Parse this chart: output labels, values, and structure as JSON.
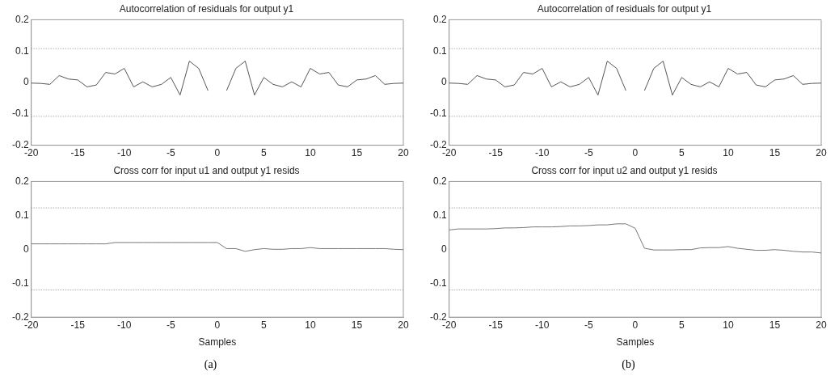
{
  "chart_data": [
    {
      "type": "line",
      "title": "Autocorrelation of residuals for output y1",
      "x": [
        -20,
        -19,
        -18,
        -17,
        -16,
        -15,
        -14,
        -13,
        -12,
        -11,
        -10,
        -9,
        -8,
        -7,
        -6,
        -5,
        -4,
        -3,
        -2,
        -1,
        0,
        1,
        2,
        3,
        4,
        5,
        6,
        7,
        8,
        9,
        10,
        11,
        12,
        13,
        14,
        15,
        16,
        17,
        18,
        19,
        20
      ],
      "series": [
        {
          "color": "#555555",
          "values": [
            -0.002,
            -0.003,
            -0.006,
            0.022,
            0.011,
            0.008,
            -0.014,
            -0.008,
            0.032,
            0.027,
            0.045,
            -0.014,
            0.002,
            -0.014,
            -0.006,
            0.016,
            -0.04,
            0.068,
            0.045,
            -0.026,
            null,
            -0.026,
            0.045,
            0.068,
            -0.04,
            0.016,
            -0.006,
            -0.014,
            0.002,
            -0.014,
            0.045,
            0.027,
            0.032,
            -0.008,
            -0.014,
            0.008,
            0.011,
            0.022,
            -0.006,
            -0.003,
            -0.002
          ]
        }
      ],
      "xlim": [
        -20,
        20
      ],
      "xticks": [
        -20,
        -15,
        -10,
        -5,
        0,
        5,
        10,
        15,
        20
      ],
      "ylim": [
        -0.2,
        0.2
      ],
      "yticks": [
        -0.2,
        -0.1,
        0,
        0.1,
        0.2
      ],
      "grid": false,
      "ref_lines": [
        {
          "axis": "y",
          "value": 0.108,
          "color": "#888888",
          "line_style": "dotted"
        },
        {
          "axis": "y",
          "value": -0.108,
          "color": "#888888",
          "line_style": "dotted"
        }
      ]
    },
    {
      "type": "line",
      "title": "Autocorrelation of residuals for output y1",
      "x": [
        -20,
        -19,
        -18,
        -17,
        -16,
        -15,
        -14,
        -13,
        -12,
        -11,
        -10,
        -9,
        -8,
        -7,
        -6,
        -5,
        -4,
        -3,
        -2,
        -1,
        0,
        1,
        2,
        3,
        4,
        5,
        6,
        7,
        8,
        9,
        10,
        11,
        12,
        13,
        14,
        15,
        16,
        17,
        18,
        19,
        20
      ],
      "series": [
        {
          "color": "#555555",
          "values": [
            -0.002,
            -0.003,
            -0.006,
            0.022,
            0.011,
            0.008,
            -0.014,
            -0.008,
            0.032,
            0.027,
            0.045,
            -0.014,
            0.002,
            -0.014,
            -0.006,
            0.016,
            -0.04,
            0.068,
            0.045,
            -0.026,
            null,
            -0.026,
            0.045,
            0.068,
            -0.04,
            0.016,
            -0.006,
            -0.014,
            0.002,
            -0.014,
            0.045,
            0.027,
            0.032,
            -0.008,
            -0.014,
            0.008,
            0.011,
            0.022,
            -0.006,
            -0.003,
            -0.002
          ]
        }
      ],
      "xlim": [
        -20,
        20
      ],
      "xticks": [
        -20,
        -15,
        -10,
        -5,
        0,
        5,
        10,
        15,
        20
      ],
      "ylim": [
        -0.2,
        0.2
      ],
      "yticks": [
        -0.2,
        -0.1,
        0,
        0.1,
        0.2
      ],
      "grid": false,
      "ref_lines": [
        {
          "axis": "y",
          "value": 0.108,
          "color": "#888888",
          "line_style": "dotted"
        },
        {
          "axis": "y",
          "value": -0.108,
          "color": "#888888",
          "line_style": "dotted"
        }
      ]
    },
    {
      "type": "line",
      "title": "Cross corr for input u1 and output y1 resids",
      "xlabel": "Samples",
      "x": [
        -20,
        -19,
        -18,
        -17,
        -16,
        -15,
        -14,
        -13,
        -12,
        -11,
        -10,
        -9,
        -8,
        -7,
        -6,
        -5,
        -4,
        -3,
        -2,
        -1,
        0,
        1,
        2,
        3,
        4,
        5,
        6,
        7,
        8,
        9,
        10,
        11,
        12,
        13,
        14,
        15,
        16,
        17,
        18,
        19,
        20
      ],
      "series": [
        {
          "color": "#777777",
          "values": [
            0.016,
            0.016,
            0.016,
            0.016,
            0.016,
            0.016,
            0.016,
            0.016,
            0.016,
            0.02,
            0.02,
            0.02,
            0.02,
            0.02,
            0.02,
            0.02,
            0.02,
            0.02,
            0.02,
            0.02,
            0.02,
            0.002,
            0.002,
            -0.006,
            -0.001,
            0.002,
            0,
            0,
            0.002,
            0.002,
            0.005,
            0.002,
            0.002,
            0.002,
            0.002,
            0.002,
            0.002,
            0.002,
            0.002,
            0,
            -0.001
          ]
        }
      ],
      "xlim": [
        -20,
        20
      ],
      "xticks": [
        -20,
        -15,
        -10,
        -5,
        0,
        5,
        10,
        15,
        20
      ],
      "ylim": [
        -0.2,
        0.2
      ],
      "yticks": [
        -0.2,
        -0.1,
        0,
        0.1,
        0.2
      ],
      "grid": false,
      "ref_lines": [
        {
          "axis": "y",
          "value": 0.122,
          "color": "#888888",
          "line_style": "dotted"
        },
        {
          "axis": "y",
          "value": -0.12,
          "color": "#888888",
          "line_style": "dotted"
        }
      ],
      "annotations": [
        "(a)"
      ]
    },
    {
      "type": "line",
      "title": "Cross corr for input u2 and output y1 resids",
      "xlabel": "Samples",
      "x": [
        -20,
        -19,
        -18,
        -17,
        -16,
        -15,
        -14,
        -13,
        -12,
        -11,
        -10,
        -9,
        -8,
        -7,
        -6,
        -5,
        -4,
        -3,
        -2,
        -1,
        0,
        1,
        2,
        3,
        4,
        5,
        6,
        7,
        8,
        9,
        10,
        11,
        12,
        13,
        14,
        15,
        16,
        17,
        18,
        19,
        20
      ],
      "series": [
        {
          "color": "#777777",
          "values": [
            0.057,
            0.06,
            0.06,
            0.06,
            0.06,
            0.061,
            0.063,
            0.063,
            0.064,
            0.066,
            0.066,
            0.066,
            0.067,
            0.069,
            0.069,
            0.07,
            0.072,
            0.072,
            0.075,
            0.075,
            0.062,
            0.003,
            -0.002,
            -0.002,
            -0.002,
            -0.001,
            -0.001,
            0.004,
            0.005,
            0.005,
            0.008,
            0.003,
            0,
            -0.003,
            -0.003,
            -0.001,
            -0.003,
            -0.006,
            -0.008,
            -0.008,
            -0.011
          ]
        }
      ],
      "xlim": [
        -20,
        20
      ],
      "xticks": [
        -20,
        -15,
        -10,
        -5,
        0,
        5,
        10,
        15,
        20
      ],
      "ylim": [
        -0.2,
        0.2
      ],
      "yticks": [
        -0.2,
        -0.1,
        0,
        0.1,
        0.2
      ],
      "grid": false,
      "ref_lines": [
        {
          "axis": "y",
          "value": 0.122,
          "color": "#888888",
          "line_style": "dotted"
        },
        {
          "axis": "y",
          "value": -0.12,
          "color": "#888888",
          "line_style": "dotted"
        }
      ],
      "annotations": [
        "(b)"
      ]
    }
  ]
}
